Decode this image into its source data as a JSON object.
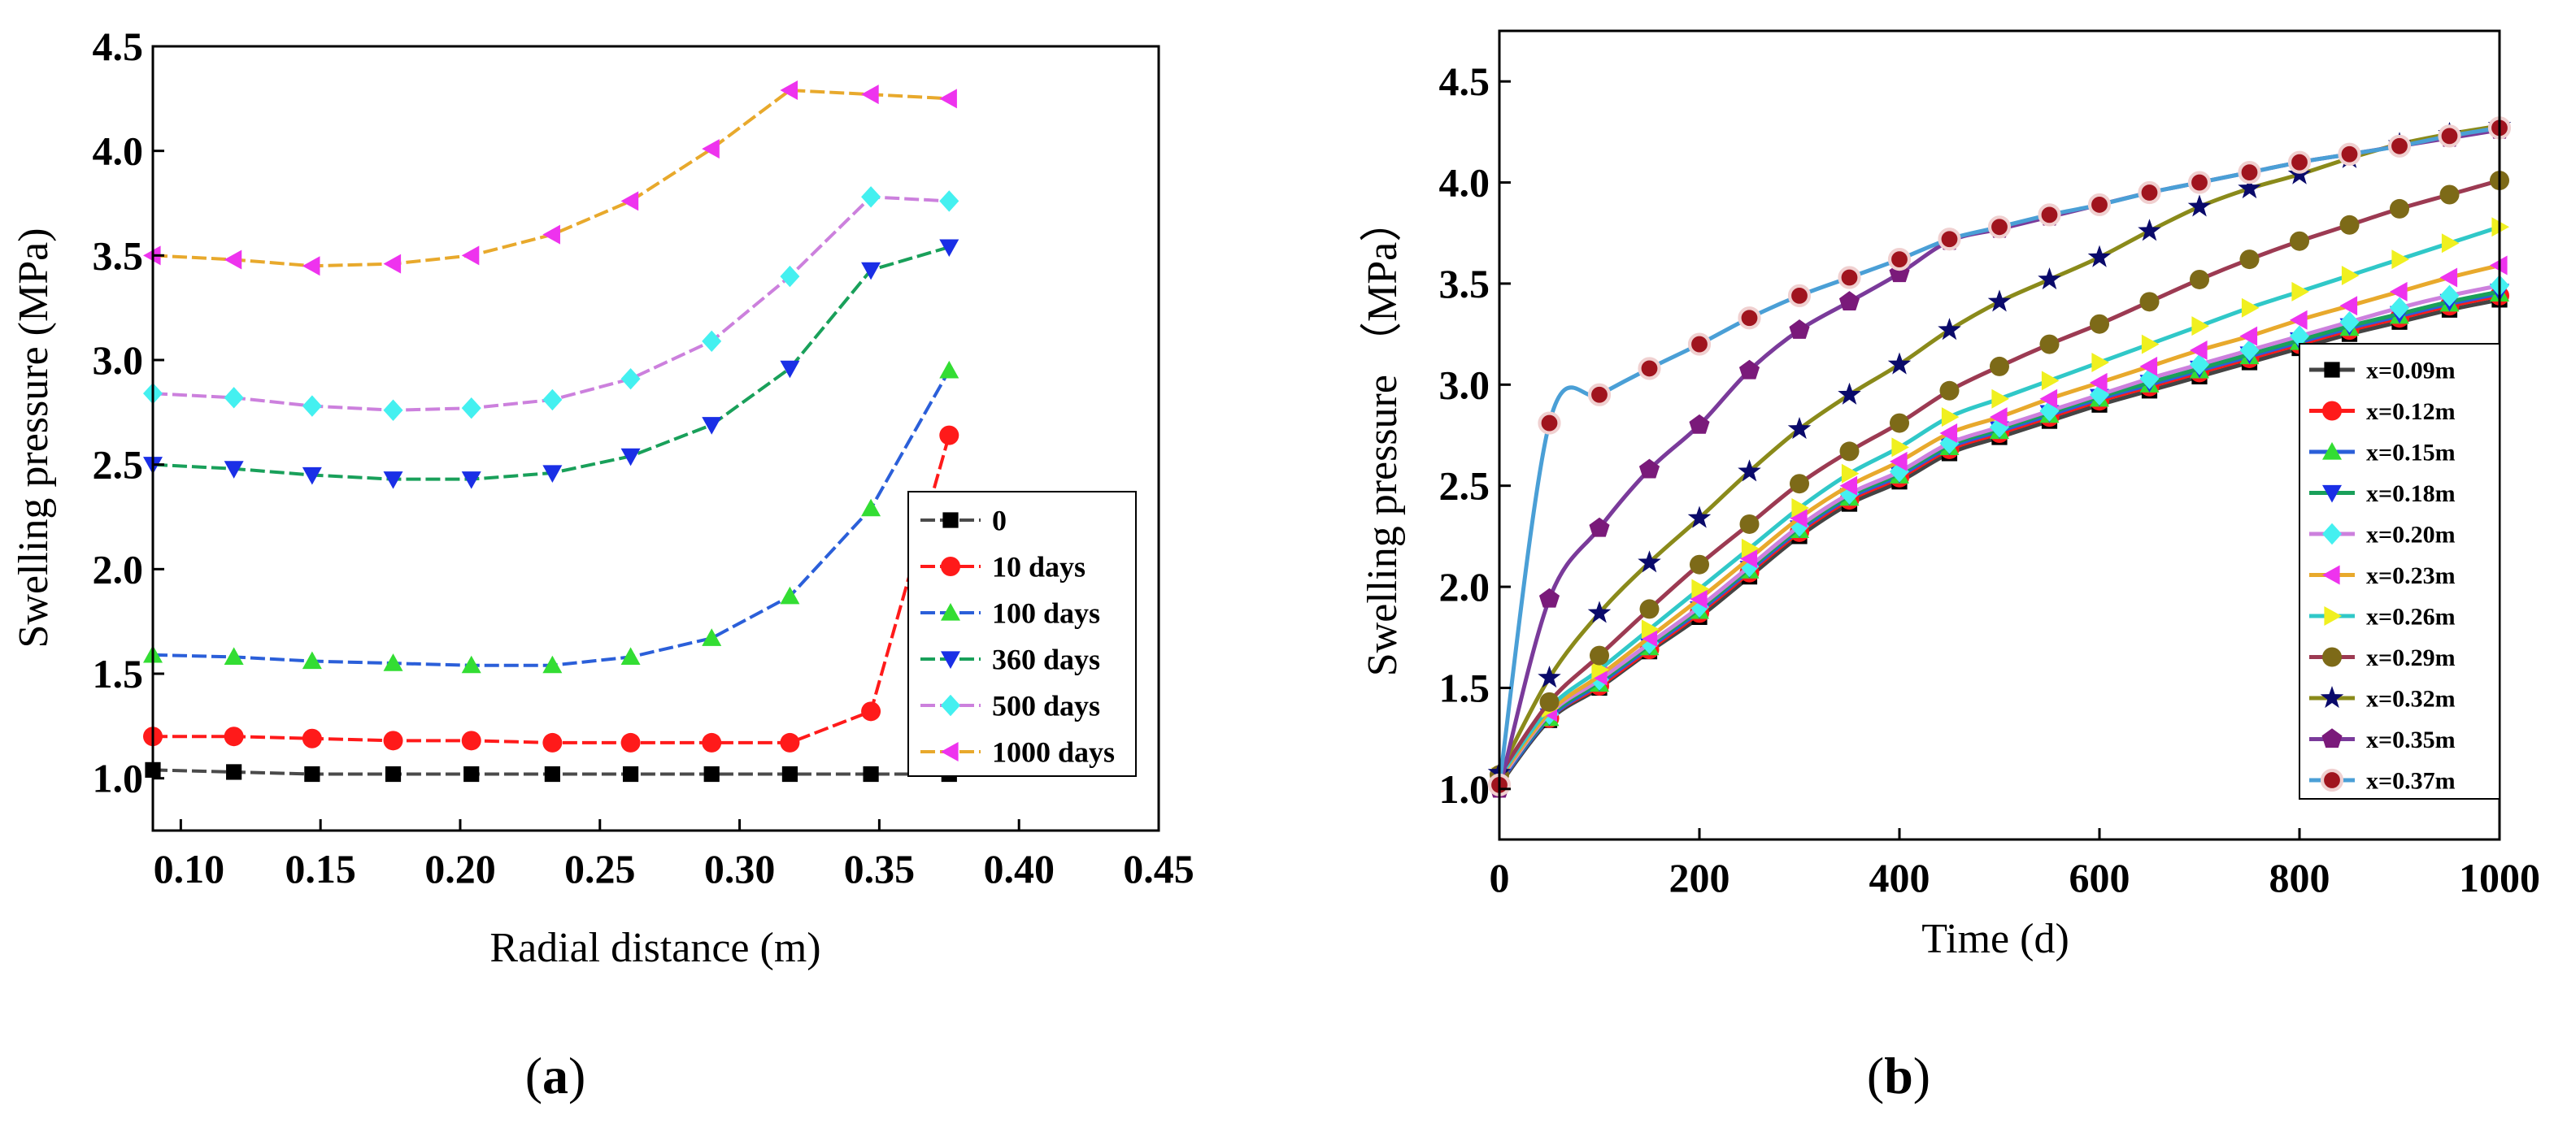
{
  "figure": {
    "panels": [
      {
        "label_prefix": "(",
        "label_letter": "a",
        "label_suffix": ")"
      },
      {
        "label_prefix": "(",
        "label_letter": "b",
        "label_suffix": ")"
      }
    ]
  },
  "chart_data": [
    {
      "type": "line",
      "title": "",
      "xlabel": "Radial distance (m)",
      "ylabel": "Swelling pressure (MPa)",
      "xlim": [
        0.09,
        0.45
      ],
      "ylim": [
        0.75,
        4.5
      ],
      "xticks": [
        0.1,
        0.15,
        0.2,
        0.25,
        0.3,
        0.35,
        0.4,
        0.45
      ],
      "xtick_labels": [
        "0.10",
        "0.15",
        "0.20",
        "0.25",
        "0.30",
        "0.35",
        "0.40",
        "0.45"
      ],
      "yticks": [
        1.0,
        1.5,
        2.0,
        2.5,
        3.0,
        3.5,
        4.0,
        4.5
      ],
      "ytick_labels": [
        "1.0",
        "1.5",
        "2.0",
        "2.5",
        "3.0",
        "3.5",
        "4.0",
        "4.5"
      ],
      "legend_position": "center-right",
      "x": [
        0.09,
        0.119,
        0.147,
        0.176,
        0.204,
        0.233,
        0.261,
        0.29,
        0.318,
        0.347,
        0.375
      ],
      "series": [
        {
          "name": "0",
          "color": "#000000",
          "line_color": "#4a4a4a",
          "marker": "square",
          "values": [
            1.04,
            1.03,
            1.02,
            1.02,
            1.02,
            1.02,
            1.02,
            1.02,
            1.02,
            1.02,
            1.02
          ]
        },
        {
          "name": "10 days",
          "color": "#ff1a1a",
          "line_color": "#ff1a1a",
          "marker": "circle",
          "values": [
            1.2,
            1.2,
            1.19,
            1.18,
            1.18,
            1.17,
            1.17,
            1.17,
            1.17,
            1.32,
            2.64
          ]
        },
        {
          "name": "100 days",
          "color": "#33dd33",
          "line_color": "#2b5fd9",
          "marker": "triangle-up",
          "values": [
            1.59,
            1.58,
            1.56,
            1.55,
            1.54,
            1.54,
            1.58,
            1.67,
            1.87,
            2.29,
            2.95
          ]
        },
        {
          "name": "360 days",
          "color": "#1a2fe6",
          "line_color": "#19a05a",
          "marker": "triangle-down",
          "values": [
            2.5,
            2.48,
            2.45,
            2.43,
            2.43,
            2.46,
            2.54,
            2.69,
            2.96,
            3.43,
            3.54
          ]
        },
        {
          "name": "500 days",
          "color": "#44f0f0",
          "line_color": "#cc80dd",
          "marker": "diamond",
          "values": [
            2.84,
            2.82,
            2.78,
            2.76,
            2.77,
            2.81,
            2.91,
            3.09,
            3.4,
            3.78,
            3.76
          ]
        },
        {
          "name": "1000 days",
          "color": "#ee33ee",
          "line_color": "#e8a92c",
          "marker": "triangle-left",
          "values": [
            3.5,
            3.48,
            3.45,
            3.46,
            3.5,
            3.6,
            3.76,
            4.01,
            4.29,
            4.27,
            4.25
          ]
        }
      ]
    },
    {
      "type": "line",
      "title": "",
      "xlabel": "Time (d)",
      "ylabel": "Swelling pressure （MPa）",
      "xlim": [
        0,
        1000
      ],
      "ylim": [
        0.75,
        4.75
      ],
      "xticks": [
        0,
        200,
        400,
        600,
        800,
        1000
      ],
      "xtick_labels": [
        "0",
        "200",
        "400",
        "600",
        "800",
        "1000"
      ],
      "yticks": [
        1.0,
        1.5,
        2.0,
        2.5,
        3.0,
        3.5,
        4.0,
        4.5
      ],
      "ytick_labels": [
        "1.0",
        "1.5",
        "2.0",
        "2.5",
        "3.0",
        "3.5",
        "4.0",
        "4.5"
      ],
      "legend_position": "bottom-right",
      "x": [
        0,
        50,
        100,
        150,
        200,
        250,
        300,
        350,
        400,
        450,
        500,
        550,
        600,
        650,
        700,
        750,
        800,
        850,
        900,
        950,
        1000
      ],
      "series": [
        {
          "name": "x=0.09m",
          "color": "#000000",
          "line_color": "#444444",
          "marker": "square",
          "values": [
            1.02,
            1.34,
            1.5,
            1.68,
            1.85,
            2.05,
            2.25,
            2.41,
            2.52,
            2.66,
            2.74,
            2.82,
            2.9,
            2.97,
            3.04,
            3.11,
            3.18,
            3.25,
            3.31,
            3.37,
            3.42
          ]
        },
        {
          "name": "x=0.12m",
          "color": "#ff1a1a",
          "line_color": "#ff1a1a",
          "marker": "circle",
          "values": [
            1.03,
            1.35,
            1.51,
            1.69,
            1.87,
            2.07,
            2.27,
            2.43,
            2.54,
            2.68,
            2.76,
            2.84,
            2.92,
            2.99,
            3.06,
            3.13,
            3.2,
            3.27,
            3.33,
            3.39,
            3.44
          ]
        },
        {
          "name": "x=0.15m",
          "color": "#33dd33",
          "line_color": "#2b5fd9",
          "marker": "triangle-up",
          "values": [
            1.03,
            1.35,
            1.52,
            1.7,
            1.88,
            2.08,
            2.28,
            2.44,
            2.55,
            2.69,
            2.77,
            2.85,
            2.93,
            3.0,
            3.07,
            3.14,
            3.21,
            3.28,
            3.34,
            3.4,
            3.45
          ]
        },
        {
          "name": "x=0.18m",
          "color": "#1a2fe6",
          "line_color": "#19a05a",
          "marker": "triangle-down",
          "values": [
            1.04,
            1.36,
            1.53,
            1.71,
            1.89,
            2.09,
            2.29,
            2.45,
            2.56,
            2.7,
            2.78,
            2.86,
            2.94,
            3.01,
            3.08,
            3.15,
            3.22,
            3.29,
            3.35,
            3.41,
            3.46
          ]
        },
        {
          "name": "x=0.20m",
          "color": "#44f0f0",
          "line_color": "#cc80dd",
          "marker": "diamond",
          "values": [
            1.04,
            1.37,
            1.54,
            1.72,
            1.9,
            2.1,
            2.3,
            2.46,
            2.57,
            2.71,
            2.79,
            2.87,
            2.95,
            3.03,
            3.1,
            3.17,
            3.24,
            3.31,
            3.38,
            3.44,
            3.49
          ]
        },
        {
          "name": "x=0.23m",
          "color": "#ee33ee",
          "line_color": "#e8a92c",
          "marker": "triangle-left",
          "values": [
            1.05,
            1.38,
            1.56,
            1.75,
            1.94,
            2.14,
            2.34,
            2.5,
            2.62,
            2.76,
            2.84,
            2.93,
            3.01,
            3.09,
            3.17,
            3.24,
            3.32,
            3.39,
            3.46,
            3.53,
            3.59
          ]
        },
        {
          "name": "x=0.26m",
          "color": "#f0f020",
          "line_color": "#30c8c8",
          "marker": "triangle-right",
          "values": [
            1.06,
            1.4,
            1.59,
            1.79,
            1.99,
            2.19,
            2.39,
            2.56,
            2.69,
            2.84,
            2.93,
            3.02,
            3.11,
            3.2,
            3.29,
            3.38,
            3.46,
            3.54,
            3.62,
            3.7,
            3.78
          ]
        },
        {
          "name": "x=0.29m",
          "color": "#7d6a18",
          "line_color": "#9c3a52",
          "marker": "circle",
          "values": [
            1.07,
            1.43,
            1.66,
            1.89,
            2.11,
            2.31,
            2.51,
            2.67,
            2.81,
            2.97,
            3.09,
            3.2,
            3.3,
            3.41,
            3.52,
            3.62,
            3.71,
            3.79,
            3.87,
            3.94,
            4.01
          ]
        },
        {
          "name": "x=0.32m",
          "color": "#0a0a6a",
          "line_color": "#8a8a1a",
          "marker": "star",
          "values": [
            1.08,
            1.55,
            1.87,
            2.12,
            2.34,
            2.57,
            2.78,
            2.95,
            3.1,
            3.27,
            3.41,
            3.52,
            3.63,
            3.76,
            3.88,
            3.97,
            4.04,
            4.12,
            4.19,
            4.24,
            4.28
          ]
        },
        {
          "name": "x=0.35m",
          "color": "#7a1a7a",
          "line_color": "#7a3a9a",
          "marker": "pentagon",
          "values": [
            1.0,
            1.94,
            2.29,
            2.58,
            2.8,
            3.07,
            3.27,
            3.41,
            3.55,
            3.71,
            3.77,
            3.83,
            3.89,
            3.95,
            4.0,
            4.05,
            4.1,
            4.14,
            4.18,
            4.22,
            4.26
          ]
        },
        {
          "name": "x=0.37m",
          "color": "#a0141e",
          "line_color": "#4a9fd6",
          "marker": "circle-ringed",
          "values": [
            1.02,
            2.81,
            2.95,
            3.08,
            3.2,
            3.33,
            3.44,
            3.53,
            3.62,
            3.72,
            3.78,
            3.84,
            3.89,
            3.95,
            4.0,
            4.05,
            4.1,
            4.14,
            4.18,
            4.23,
            4.27
          ]
        }
      ]
    }
  ]
}
